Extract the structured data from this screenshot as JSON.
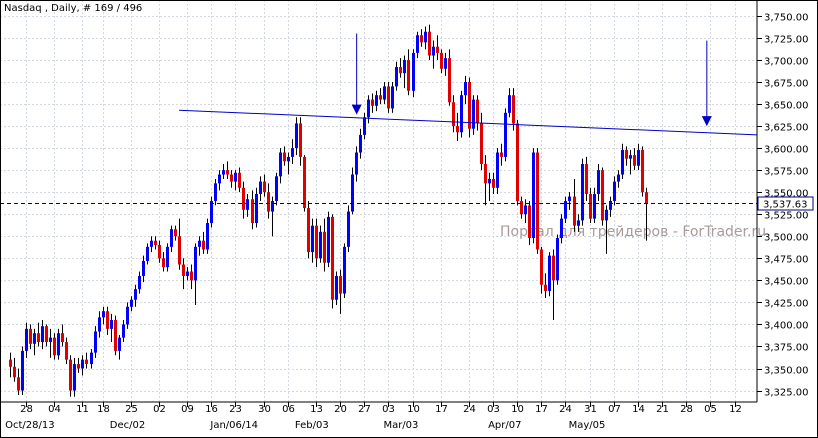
{
  "window": {
    "title": "Nasdaq , Daily, # 169 / 496"
  },
  "watermark": "Портал для трейдеров - ForTrader.ru",
  "current_price_label": "3,537.63",
  "colors": {
    "background": "#ffffff",
    "grid": "#d4d8e0",
    "up_candle": "#0000ff",
    "down_candle": "#e00000",
    "wick": "#000000",
    "trendline": "#0000c8",
    "arrow": "#0000c8",
    "price_line": "#000080"
  },
  "chart_data": {
    "type": "candlestick",
    "title": "Nasdaq , Daily, # 169 / 496",
    "xlabel": "",
    "ylabel": "",
    "ylim": [
      3312,
      3768
    ],
    "y_ticks": [
      "3,750.00",
      "3,725.00",
      "3,700.00",
      "3,675.00",
      "3,650.00",
      "3,625.00",
      "3,600.00",
      "3,575.00",
      "3,550.00",
      "3,525.00",
      "3,500.00",
      "3,475.00",
      "3,450.00",
      "3,425.00",
      "3,400.00",
      "3,375.00",
      "3,350.00",
      "3,325.00"
    ],
    "y_tick_values": [
      3750,
      3725,
      3700,
      3675,
      3650,
      3625,
      3600,
      3575,
      3550,
      3525,
      3500,
      3475,
      3450,
      3425,
      3400,
      3375,
      3350,
      3325
    ],
    "x_ticks": [
      "28",
      "04",
      "11",
      "18",
      "25",
      "02",
      "09",
      "16",
      "23",
      "30",
      "06",
      "13",
      "20",
      "27",
      "03",
      "10",
      "17",
      "24",
      "03",
      "10",
      "17",
      "24",
      "31",
      "07",
      "14",
      "21",
      "28",
      "05",
      "12"
    ],
    "x_tick_bars": [
      4,
      11,
      18,
      23,
      30,
      37,
      44,
      50,
      56,
      63,
      69,
      76,
      82,
      88,
      94,
      100,
      107,
      114,
      120,
      126,
      132,
      138,
      144,
      150,
      156,
      162,
      168,
      174,
      180
    ],
    "date_labels": [
      "Oct/28/13",
      "Dec/02",
      "Jan/06/14",
      "Feb/03",
      "Mar/03",
      "Apr/07",
      "May/05"
    ],
    "date_label_bars": [
      4,
      30,
      55,
      76,
      98,
      124,
      144
    ],
    "grid": true,
    "current_price": 3537.63,
    "candles": [
      {
        "o": 3360,
        "h": 3368,
        "l": 3340,
        "c": 3352
      },
      {
        "o": 3352,
        "h": 3362,
        "l": 3335,
        "c": 3340
      },
      {
        "o": 3340,
        "h": 3350,
        "l": 3320,
        "c": 3325
      },
      {
        "o": 3325,
        "h": 3375,
        "l": 3320,
        "c": 3370
      },
      {
        "o": 3370,
        "h": 3402,
        "l": 3362,
        "c": 3395
      },
      {
        "o": 3395,
        "h": 3400,
        "l": 3372,
        "c": 3378
      },
      {
        "o": 3378,
        "h": 3395,
        "l": 3365,
        "c": 3390
      },
      {
        "o": 3390,
        "h": 3402,
        "l": 3375,
        "c": 3380
      },
      {
        "o": 3380,
        "h": 3405,
        "l": 3372,
        "c": 3398
      },
      {
        "o": 3398,
        "h": 3400,
        "l": 3375,
        "c": 3380
      },
      {
        "o": 3380,
        "h": 3395,
        "l": 3362,
        "c": 3385
      },
      {
        "o": 3385,
        "h": 3390,
        "l": 3360,
        "c": 3365
      },
      {
        "o": 3365,
        "h": 3395,
        "l": 3360,
        "c": 3390
      },
      {
        "o": 3390,
        "h": 3400,
        "l": 3375,
        "c": 3380
      },
      {
        "o": 3380,
        "h": 3385,
        "l": 3355,
        "c": 3360
      },
      {
        "o": 3360,
        "h": 3365,
        "l": 3318,
        "c": 3325
      },
      {
        "o": 3325,
        "h": 3362,
        "l": 3318,
        "c": 3355
      },
      {
        "o": 3355,
        "h": 3362,
        "l": 3345,
        "c": 3350
      },
      {
        "o": 3350,
        "h": 3365,
        "l": 3342,
        "c": 3360
      },
      {
        "o": 3360,
        "h": 3368,
        "l": 3350,
        "c": 3355
      },
      {
        "o": 3355,
        "h": 3372,
        "l": 3350,
        "c": 3368
      },
      {
        "o": 3368,
        "h": 3398,
        "l": 3362,
        "c": 3392
      },
      {
        "o": 3392,
        "h": 3415,
        "l": 3385,
        "c": 3408
      },
      {
        "o": 3408,
        "h": 3420,
        "l": 3400,
        "c": 3415
      },
      {
        "o": 3415,
        "h": 3420,
        "l": 3388,
        "c": 3395
      },
      {
        "o": 3395,
        "h": 3412,
        "l": 3380,
        "c": 3405
      },
      {
        "o": 3405,
        "h": 3410,
        "l": 3365,
        "c": 3370
      },
      {
        "o": 3370,
        "h": 3388,
        "l": 3360,
        "c": 3385
      },
      {
        "o": 3385,
        "h": 3405,
        "l": 3380,
        "c": 3400
      },
      {
        "o": 3400,
        "h": 3425,
        "l": 3395,
        "c": 3420
      },
      {
        "o": 3420,
        "h": 3432,
        "l": 3415,
        "c": 3428
      },
      {
        "o": 3428,
        "h": 3445,
        "l": 3420,
        "c": 3440
      },
      {
        "o": 3440,
        "h": 3460,
        "l": 3435,
        "c": 3455
      },
      {
        "o": 3455,
        "h": 3478,
        "l": 3448,
        "c": 3472
      },
      {
        "o": 3472,
        "h": 3492,
        "l": 3468,
        "c": 3488
      },
      {
        "o": 3488,
        "h": 3500,
        "l": 3482,
        "c": 3495
      },
      {
        "o": 3495,
        "h": 3500,
        "l": 3485,
        "c": 3490
      },
      {
        "o": 3490,
        "h": 3495,
        "l": 3470,
        "c": 3475
      },
      {
        "o": 3475,
        "h": 3482,
        "l": 3460,
        "c": 3465
      },
      {
        "o": 3465,
        "h": 3492,
        "l": 3460,
        "c": 3488
      },
      {
        "o": 3488,
        "h": 3512,
        "l": 3482,
        "c": 3508
      },
      {
        "o": 3508,
        "h": 3512,
        "l": 3495,
        "c": 3500
      },
      {
        "o": 3500,
        "h": 3520,
        "l": 3462,
        "c": 3468
      },
      {
        "o": 3468,
        "h": 3475,
        "l": 3440,
        "c": 3455
      },
      {
        "o": 3455,
        "h": 3465,
        "l": 3450,
        "c": 3460
      },
      {
        "o": 3460,
        "h": 3468,
        "l": 3440,
        "c": 3450
      },
      {
        "o": 3450,
        "h": 3492,
        "l": 3422,
        "c": 3488
      },
      {
        "o": 3488,
        "h": 3500,
        "l": 3478,
        "c": 3495
      },
      {
        "o": 3495,
        "h": 3505,
        "l": 3480,
        "c": 3485
      },
      {
        "o": 3485,
        "h": 3520,
        "l": 3480,
        "c": 3515
      },
      {
        "o": 3515,
        "h": 3545,
        "l": 3510,
        "c": 3540
      },
      {
        "o": 3540,
        "h": 3565,
        "l": 3535,
        "c": 3560
      },
      {
        "o": 3560,
        "h": 3575,
        "l": 3552,
        "c": 3570
      },
      {
        "o": 3570,
        "h": 3582,
        "l": 3565,
        "c": 3575
      },
      {
        "o": 3575,
        "h": 3585,
        "l": 3565,
        "c": 3570
      },
      {
        "o": 3570,
        "h": 3575,
        "l": 3555,
        "c": 3562
      },
      {
        "o": 3562,
        "h": 3575,
        "l": 3552,
        "c": 3572
      },
      {
        "o": 3572,
        "h": 3578,
        "l": 3550,
        "c": 3555
      },
      {
        "o": 3555,
        "h": 3562,
        "l": 3520,
        "c": 3530
      },
      {
        "o": 3530,
        "h": 3548,
        "l": 3522,
        "c": 3542
      },
      {
        "o": 3542,
        "h": 3552,
        "l": 3508,
        "c": 3515
      },
      {
        "o": 3515,
        "h": 3555,
        "l": 3510,
        "c": 3548
      },
      {
        "o": 3548,
        "h": 3568,
        "l": 3540,
        "c": 3562
      },
      {
        "o": 3562,
        "h": 3570,
        "l": 3545,
        "c": 3550
      },
      {
        "o": 3550,
        "h": 3560,
        "l": 3520,
        "c": 3528
      },
      {
        "o": 3528,
        "h": 3545,
        "l": 3500,
        "c": 3540
      },
      {
        "o": 3540,
        "h": 3572,
        "l": 3535,
        "c": 3568
      },
      {
        "o": 3568,
        "h": 3600,
        "l": 3560,
        "c": 3595
      },
      {
        "o": 3595,
        "h": 3602,
        "l": 3580,
        "c": 3585
      },
      {
        "o": 3585,
        "h": 3595,
        "l": 3570,
        "c": 3590
      },
      {
        "o": 3590,
        "h": 3610,
        "l": 3582,
        "c": 3600
      },
      {
        "o": 3600,
        "h": 3635,
        "l": 3592,
        "c": 3628
      },
      {
        "o": 3628,
        "h": 3635,
        "l": 3580,
        "c": 3590
      },
      {
        "o": 3590,
        "h": 3592,
        "l": 3528,
        "c": 3532
      },
      {
        "o": 3532,
        "h": 3540,
        "l": 3475,
        "c": 3482
      },
      {
        "o": 3482,
        "h": 3520,
        "l": 3470,
        "c": 3512
      },
      {
        "o": 3512,
        "h": 3520,
        "l": 3465,
        "c": 3475
      },
      {
        "o": 3475,
        "h": 3512,
        "l": 3470,
        "c": 3505
      },
      {
        "o": 3505,
        "h": 3520,
        "l": 3460,
        "c": 3470
      },
      {
        "o": 3470,
        "h": 3528,
        "l": 3465,
        "c": 3522
      },
      {
        "o": 3522,
        "h": 3525,
        "l": 3418,
        "c": 3428
      },
      {
        "o": 3428,
        "h": 3460,
        "l": 3422,
        "c": 3455
      },
      {
        "o": 3455,
        "h": 3462,
        "l": 3412,
        "c": 3435
      },
      {
        "o": 3435,
        "h": 3492,
        "l": 3430,
        "c": 3488
      },
      {
        "o": 3488,
        "h": 3535,
        "l": 3482,
        "c": 3528
      },
      {
        "o": 3528,
        "h": 3578,
        "l": 3525,
        "c": 3570
      },
      {
        "o": 3570,
        "h": 3602,
        "l": 3562,
        "c": 3595
      },
      {
        "o": 3595,
        "h": 3622,
        "l": 3588,
        "c": 3615
      },
      {
        "o": 3615,
        "h": 3640,
        "l": 3610,
        "c": 3635
      },
      {
        "o": 3635,
        "h": 3660,
        "l": 3628,
        "c": 3655
      },
      {
        "o": 3655,
        "h": 3662,
        "l": 3640,
        "c": 3648
      },
      {
        "o": 3648,
        "h": 3665,
        "l": 3642,
        "c": 3660
      },
      {
        "o": 3660,
        "h": 3668,
        "l": 3650,
        "c": 3655
      },
      {
        "o": 3655,
        "h": 3675,
        "l": 3650,
        "c": 3670
      },
      {
        "o": 3670,
        "h": 3675,
        "l": 3640,
        "c": 3645
      },
      {
        "o": 3645,
        "h": 3675,
        "l": 3640,
        "c": 3670
      },
      {
        "o": 3670,
        "h": 3698,
        "l": 3665,
        "c": 3692
      },
      {
        "o": 3692,
        "h": 3702,
        "l": 3680,
        "c": 3685
      },
      {
        "o": 3685,
        "h": 3705,
        "l": 3668,
        "c": 3700
      },
      {
        "o": 3700,
        "h": 3712,
        "l": 3660,
        "c": 3665
      },
      {
        "o": 3665,
        "h": 3712,
        "l": 3658,
        "c": 3708
      },
      {
        "o": 3708,
        "h": 3732,
        "l": 3702,
        "c": 3728
      },
      {
        "o": 3728,
        "h": 3735,
        "l": 3715,
        "c": 3720
      },
      {
        "o": 3720,
        "h": 3738,
        "l": 3712,
        "c": 3732
      },
      {
        "o": 3732,
        "h": 3740,
        "l": 3700,
        "c": 3705
      },
      {
        "o": 3705,
        "h": 3722,
        "l": 3690,
        "c": 3715
      },
      {
        "o": 3715,
        "h": 3728,
        "l": 3700,
        "c": 3708
      },
      {
        "o": 3708,
        "h": 3712,
        "l": 3685,
        "c": 3690
      },
      {
        "o": 3690,
        "h": 3708,
        "l": 3682,
        "c": 3702
      },
      {
        "o": 3702,
        "h": 3712,
        "l": 3648,
        "c": 3652
      },
      {
        "o": 3652,
        "h": 3660,
        "l": 3618,
        "c": 3625
      },
      {
        "o": 3625,
        "h": 3640,
        "l": 3608,
        "c": 3618
      },
      {
        "o": 3618,
        "h": 3665,
        "l": 3612,
        "c": 3660
      },
      {
        "o": 3660,
        "h": 3682,
        "l": 3650,
        "c": 3675
      },
      {
        "o": 3675,
        "h": 3680,
        "l": 3612,
        "c": 3622
      },
      {
        "o": 3622,
        "h": 3660,
        "l": 3615,
        "c": 3655
      },
      {
        "o": 3655,
        "h": 3660,
        "l": 3620,
        "c": 3628
      },
      {
        "o": 3628,
        "h": 3640,
        "l": 3575,
        "c": 3582
      },
      {
        "o": 3582,
        "h": 3592,
        "l": 3535,
        "c": 3560
      },
      {
        "o": 3560,
        "h": 3572,
        "l": 3540,
        "c": 3565
      },
      {
        "o": 3565,
        "h": 3572,
        "l": 3548,
        "c": 3555
      },
      {
        "o": 3555,
        "h": 3600,
        "l": 3548,
        "c": 3595
      },
      {
        "o": 3595,
        "h": 3605,
        "l": 3580,
        "c": 3590
      },
      {
        "o": 3590,
        "h": 3645,
        "l": 3585,
        "c": 3640
      },
      {
        "o": 3640,
        "h": 3668,
        "l": 3635,
        "c": 3660
      },
      {
        "o": 3660,
        "h": 3668,
        "l": 3620,
        "c": 3628
      },
      {
        "o": 3628,
        "h": 3632,
        "l": 3535,
        "c": 3540
      },
      {
        "o": 3540,
        "h": 3545,
        "l": 3520,
        "c": 3525
      },
      {
        "o": 3525,
        "h": 3542,
        "l": 3515,
        "c": 3535
      },
      {
        "o": 3535,
        "h": 3540,
        "l": 3490,
        "c": 3498
      },
      {
        "o": 3498,
        "h": 3600,
        "l": 3492,
        "c": 3595
      },
      {
        "o": 3595,
        "h": 3600,
        "l": 3480,
        "c": 3485
      },
      {
        "o": 3485,
        "h": 3488,
        "l": 3435,
        "c": 3445
      },
      {
        "o": 3445,
        "h": 3458,
        "l": 3430,
        "c": 3438
      },
      {
        "o": 3438,
        "h": 3482,
        "l": 3432,
        "c": 3478
      },
      {
        "o": 3478,
        "h": 3485,
        "l": 3405,
        "c": 3450
      },
      {
        "o": 3450,
        "h": 3502,
        "l": 3445,
        "c": 3498
      },
      {
        "o": 3498,
        "h": 3525,
        "l": 3492,
        "c": 3520
      },
      {
        "o": 3520,
        "h": 3545,
        "l": 3515,
        "c": 3540
      },
      {
        "o": 3540,
        "h": 3550,
        "l": 3530,
        "c": 3545
      },
      {
        "o": 3545,
        "h": 3565,
        "l": 3505,
        "c": 3512
      },
      {
        "o": 3512,
        "h": 3525,
        "l": 3505,
        "c": 3518
      },
      {
        "o": 3518,
        "h": 3588,
        "l": 3512,
        "c": 3582
      },
      {
        "o": 3582,
        "h": 3590,
        "l": 3540,
        "c": 3548
      },
      {
        "o": 3548,
        "h": 3555,
        "l": 3515,
        "c": 3520
      },
      {
        "o": 3520,
        "h": 3555,
        "l": 3515,
        "c": 3548
      },
      {
        "o": 3548,
        "h": 3582,
        "l": 3540,
        "c": 3575
      },
      {
        "o": 3575,
        "h": 3578,
        "l": 3512,
        "c": 3518
      },
      {
        "o": 3518,
        "h": 3535,
        "l": 3480,
        "c": 3530
      },
      {
        "o": 3530,
        "h": 3545,
        "l": 3522,
        "c": 3540
      },
      {
        "o": 3540,
        "h": 3568,
        "l": 3535,
        "c": 3562
      },
      {
        "o": 3562,
        "h": 3575,
        "l": 3555,
        "c": 3570
      },
      {
        "o": 3570,
        "h": 3605,
        "l": 3565,
        "c": 3598
      },
      {
        "o": 3598,
        "h": 3602,
        "l": 3580,
        "c": 3588
      },
      {
        "o": 3588,
        "h": 3598,
        "l": 3570,
        "c": 3592
      },
      {
        "o": 3592,
        "h": 3600,
        "l": 3575,
        "c": 3580
      },
      {
        "o": 3580,
        "h": 3605,
        "l": 3575,
        "c": 3598
      },
      {
        "o": 3598,
        "h": 3602,
        "l": 3545,
        "c": 3550
      },
      {
        "o": 3550,
        "h": 3555,
        "l": 3495,
        "c": 3537.63
      }
    ],
    "trendline": {
      "from": {
        "bar": 42,
        "value": 3643
      },
      "to": {
        "bar": 196,
        "value": 3615
      }
    },
    "arrows": [
      {
        "bar": 86,
        "from": 3730,
        "to": 3638
      },
      {
        "bar": 173,
        "from": 3722,
        "to": 3625
      }
    ]
  }
}
